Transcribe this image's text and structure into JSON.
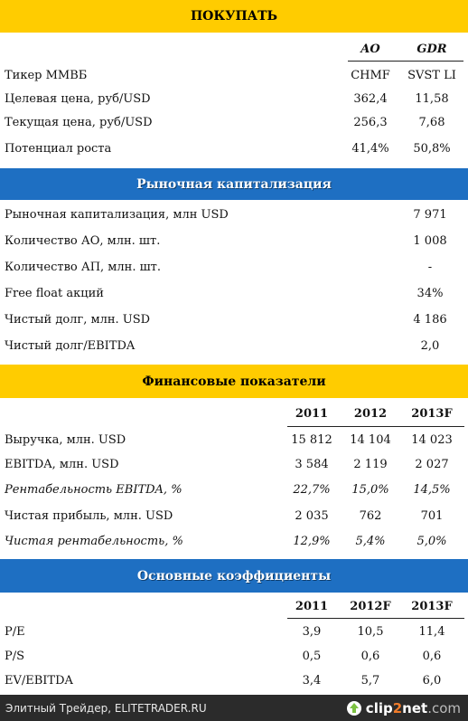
{
  "buy": {
    "title": "ПОКУПАТЬ",
    "col_ao": "AO",
    "col_gdr": "GDR",
    "rows": [
      {
        "label": "Тикер ММВБ",
        "ao": "CHMF",
        "gdr": "SVST LI"
      },
      {
        "label": "Целевая цена, руб/USD",
        "ao": "362,4",
        "gdr": "11,58"
      },
      {
        "label": "Текущая цена, руб/USD",
        "ao": "256,3",
        "gdr": "7,68"
      },
      {
        "label": "Потенциал роста",
        "ao": "41,4%",
        "gdr": "50,8%"
      }
    ]
  },
  "market": {
    "title": "Рыночная капитализация",
    "rows": [
      {
        "label": "Рыночная капитализация, млн USD",
        "value": "7 971"
      },
      {
        "label": "Количество АО, млн. шт.",
        "value": "1 008"
      },
      {
        "label": "Количество АП, млн. шт.",
        "value": "-"
      },
      {
        "label": "Free float акций",
        "value": "34%"
      },
      {
        "label": "Чистый долг, млн. USD",
        "value": "4 186"
      },
      {
        "label": "Чистый долг/EBITDA",
        "value": "2,0"
      }
    ]
  },
  "financial": {
    "title": "Финансовые показатели",
    "years": [
      "2011",
      "2012",
      "2013F"
    ],
    "rows": [
      {
        "label": "Выручка, млн. USD",
        "v": [
          "15 812",
          "14 104",
          "14 023"
        ],
        "italic": false
      },
      {
        "label": "EBITDA, млн. USD",
        "v": [
          "3 584",
          "2 119",
          "2 027"
        ],
        "italic": false
      },
      {
        "label": "Рентабельность EBITDA, %",
        "v": [
          "22,7%",
          "15,0%",
          "14,5%"
        ],
        "italic": true
      },
      {
        "label": "Чистая прибыль, млн. USD",
        "v": [
          "2 035",
          "762",
          "701"
        ],
        "italic": false
      },
      {
        "label": "Чистая рентабельность, %",
        "v": [
          "12,9%",
          "5,4%",
          "5,0%"
        ],
        "italic": true
      }
    ]
  },
  "ratios": {
    "title": "Основные коэффициенты",
    "years": [
      "2011",
      "2012F",
      "2013F"
    ],
    "rows": [
      {
        "label": "P/E",
        "v": [
          "3,9",
          "10,5",
          "11,4"
        ]
      },
      {
        "label": "P/S",
        "v": [
          "0,5",
          "0,6",
          "0,6"
        ]
      },
      {
        "label": "EV/EBITDA",
        "v": [
          "3,4",
          "5,7",
          "6,0"
        ]
      }
    ]
  },
  "footer": {
    "source": "Элитный Трейдер, ELITETRADER.RU",
    "logo_clip": "clip",
    "logo_two": "2",
    "logo_net": "net",
    "logo_dotcom": ".com"
  },
  "colors": {
    "yellow": "#ffcc00",
    "blue": "#1e6fc2",
    "footer": "#2b2b2b"
  }
}
